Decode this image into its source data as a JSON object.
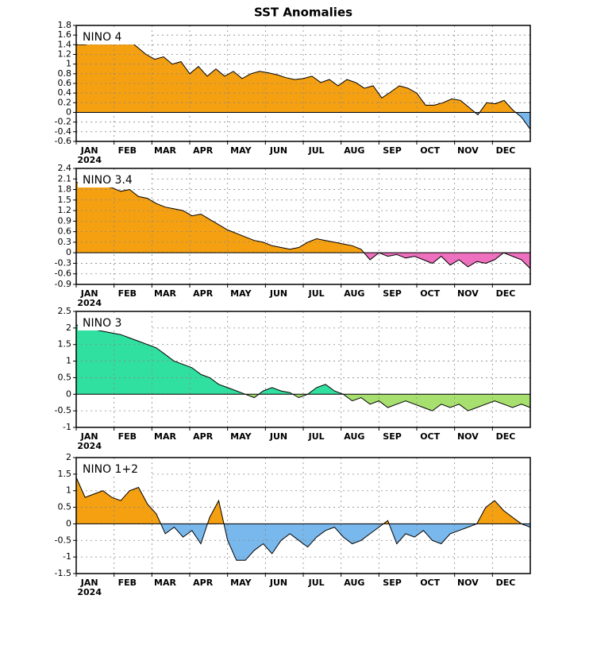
{
  "page_title": "SST Anomalies",
  "chart_data": [
    {
      "type": "area",
      "label": "NINO 4",
      "xtick_labels": [
        "JAN",
        "FEB",
        "MAR",
        "APR",
        "MAY",
        "JUN",
        "JUL",
        "AUG",
        "SEP",
        "OCT",
        "NOV",
        "DEC"
      ],
      "year_label": "2024",
      "values": [
        1.4,
        1.4,
        1.45,
        1.55,
        1.45,
        1.6,
        1.5,
        1.35,
        1.2,
        1.1,
        1.15,
        1.0,
        1.05,
        0.8,
        0.95,
        0.75,
        0.9,
        0.75,
        0.85,
        0.7,
        0.8,
        0.85,
        0.82,
        0.78,
        0.72,
        0.68,
        0.7,
        0.75,
        0.62,
        0.68,
        0.55,
        0.68,
        0.62,
        0.5,
        0.55,
        0.3,
        0.42,
        0.55,
        0.5,
        0.4,
        0.15,
        0.15,
        0.2,
        0.28,
        0.25,
        0.1,
        -0.05,
        0.2,
        0.18,
        0.25,
        0.05,
        -0.1,
        -0.35
      ],
      "pos_color": "#f5a010",
      "neg_color": "#79b8ec",
      "ylim": [
        -0.6,
        1.8
      ],
      "yticks": [
        -0.6,
        -0.4,
        -0.2,
        0,
        0.2,
        0.4,
        0.6,
        0.8,
        1,
        1.2,
        1.4,
        1.6,
        1.8
      ],
      "grid": true
    },
    {
      "type": "area",
      "label": "NINO 3.4",
      "xtick_labels": [
        "JAN",
        "FEB",
        "MAR",
        "APR",
        "MAY",
        "JUN",
        "JUL",
        "AUG",
        "SEP",
        "OCT",
        "NOV",
        "DEC"
      ],
      "year_label": "2024",
      "values": [
        2.0,
        2.0,
        1.95,
        1.9,
        1.85,
        1.75,
        1.8,
        1.6,
        1.55,
        1.4,
        1.3,
        1.25,
        1.2,
        1.05,
        1.1,
        0.95,
        0.8,
        0.65,
        0.55,
        0.45,
        0.35,
        0.3,
        0.2,
        0.15,
        0.1,
        0.15,
        0.3,
        0.4,
        0.35,
        0.3,
        0.25,
        0.2,
        0.1,
        -0.2,
        0.0,
        -0.1,
        -0.05,
        -0.15,
        -0.1,
        -0.2,
        -0.3,
        -0.1,
        -0.35,
        -0.2,
        -0.4,
        -0.25,
        -0.3,
        -0.2,
        0.0,
        -0.1,
        -0.2,
        -0.45
      ],
      "pos_color": "#f5a010",
      "neg_color": "#f070c0",
      "ylim": [
        -0.9,
        2.4
      ],
      "yticks": [
        -0.9,
        -0.6,
        -0.3,
        0,
        0.3,
        0.6,
        0.9,
        1.2,
        1.5,
        1.8,
        2.1,
        2.4
      ],
      "grid": true
    },
    {
      "type": "area",
      "label": "NINO 3",
      "xtick_labels": [
        "JAN",
        "FEB",
        "MAR",
        "APR",
        "MAY",
        "JUN",
        "JUL",
        "AUG",
        "SEP",
        "OCT",
        "NOV",
        "DEC"
      ],
      "year_label": "2024",
      "values": [
        2.1,
        2.0,
        1.95,
        1.9,
        1.85,
        1.8,
        1.7,
        1.6,
        1.5,
        1.4,
        1.2,
        1.0,
        0.9,
        0.8,
        0.6,
        0.5,
        0.3,
        0.2,
        0.1,
        0.0,
        -0.1,
        0.1,
        0.2,
        0.1,
        0.05,
        -0.1,
        0.0,
        0.2,
        0.3,
        0.1,
        0.0,
        -0.2,
        -0.1,
        -0.3,
        -0.2,
        -0.4,
        -0.3,
        -0.2,
        -0.3,
        -0.4,
        -0.5,
        -0.3,
        -0.4,
        -0.3,
        -0.5,
        -0.4,
        -0.3,
        -0.2,
        -0.3,
        -0.4,
        -0.3,
        -0.4
      ],
      "pos_color": "#30e0a0",
      "neg_color": "#a8e070",
      "ylim": [
        -1,
        2.5
      ],
      "yticks": [
        -1,
        -0.5,
        0,
        0.5,
        1,
        1.5,
        2,
        2.5
      ],
      "grid": true
    },
    {
      "type": "area",
      "label": "NINO 1+2",
      "xtick_labels": [
        "JAN",
        "FEB",
        "MAR",
        "APR",
        "MAY",
        "JUN",
        "JUL",
        "AUG",
        "SEP",
        "OCT",
        "NOV",
        "DEC"
      ],
      "year_label": "2024",
      "values": [
        1.4,
        0.8,
        0.9,
        1.0,
        0.8,
        0.7,
        1.0,
        1.1,
        0.6,
        0.3,
        -0.3,
        -0.1,
        -0.4,
        -0.2,
        -0.6,
        0.2,
        0.7,
        -0.5,
        -1.1,
        -1.1,
        -0.8,
        -0.6,
        -0.9,
        -0.5,
        -0.3,
        -0.5,
        -0.7,
        -0.4,
        -0.2,
        -0.1,
        -0.4,
        -0.6,
        -0.5,
        -0.3,
        -0.1,
        0.1,
        -0.6,
        -0.3,
        -0.4,
        -0.2,
        -0.5,
        -0.6,
        -0.3,
        -0.2,
        -0.1,
        0.0,
        0.5,
        0.7,
        0.4,
        0.2,
        0.0,
        -0.1
      ],
      "pos_color": "#f5a010",
      "neg_color": "#79b8ec",
      "ylim": [
        -1.5,
        2
      ],
      "yticks": [
        -1.5,
        -1,
        -0.5,
        0,
        0.5,
        1,
        1.5,
        2
      ],
      "grid": true
    }
  ]
}
